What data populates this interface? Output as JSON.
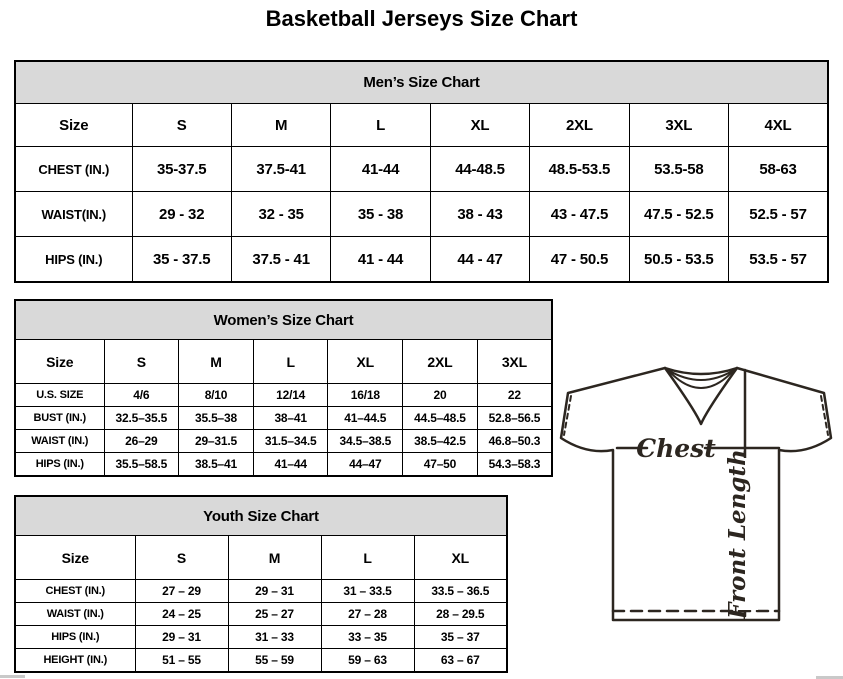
{
  "page": {
    "title": "Basketball Jerseys Size Chart"
  },
  "tables": {
    "mens": {
      "title": "Men’s Size Chart",
      "columns": [
        "Size",
        "S",
        "M",
        "L",
        "XL",
        "2XL",
        "3XL",
        "4XL"
      ],
      "rows": [
        {
          "label": "CHEST (IN.)",
          "values": [
            "35-37.5",
            "37.5-41",
            "41-44",
            "44-48.5",
            "48.5-53.5",
            "53.5-58",
            "58-63"
          ]
        },
        {
          "label": "WAIST(IN.)",
          "values": [
            "29 - 32",
            "32 - 35",
            "35 - 38",
            "38 - 43",
            "43 - 47.5",
            "47.5 - 52.5",
            "52.5 - 57"
          ]
        },
        {
          "label": "HIPS (IN.)",
          "values": [
            "35 - 37.5",
            "37.5 - 41",
            "41 - 44",
            "44 - 47",
            "47 - 50.5",
            "50.5 - 53.5",
            "53.5 - 57"
          ]
        }
      ]
    },
    "womens": {
      "title": "Women’s Size Chart",
      "columns": [
        "Size",
        "S",
        "M",
        "L",
        "XL",
        "2XL",
        "3XL"
      ],
      "rows": [
        {
          "label": "U.S. SIZE",
          "values": [
            "4/6",
            "8/10",
            "12/14",
            "16/18",
            "20",
            "22"
          ]
        },
        {
          "label": "BUST (IN.)",
          "values": [
            "32.5–35.5",
            "35.5–38",
            "38–41",
            "41–44.5",
            "44.5–48.5",
            "52.8–56.5"
          ]
        },
        {
          "label": "WAIST (IN.)",
          "values": [
            "26–29",
            "29–31.5",
            "31.5–34.5",
            "34.5–38.5",
            "38.5–42.5",
            "46.8–50.3"
          ]
        },
        {
          "label": "HIPS (IN.)",
          "values": [
            "35.5–58.5",
            "38.5–41",
            "41–44",
            "44–47",
            "47–50",
            "54.3–58.3"
          ]
        }
      ]
    },
    "youth": {
      "title": "Youth Size Chart",
      "columns": [
        "Size",
        "S",
        "M",
        "L",
        "XL"
      ],
      "rows": [
        {
          "label": "CHEST (IN.)",
          "values": [
            "27 – 29",
            "29 – 31",
            "31 – 33.5",
            "33.5 – 36.5"
          ]
        },
        {
          "label": "WAIST (IN.)",
          "values": [
            "24 – 25",
            "25 – 27",
            "27 – 28",
            "28 – 29.5"
          ]
        },
        {
          "label": "HIPS (IN.)",
          "values": [
            "29 – 31",
            "31 – 33",
            "33 – 35",
            "35 – 37"
          ]
        },
        {
          "label": "HEIGHT (IN.)",
          "values": [
            "51 – 55",
            "55 – 59",
            "59 – 63",
            "63 – 67"
          ]
        }
      ]
    }
  },
  "diagram": {
    "chest_label": "Chest",
    "front_length_label": "Front Length"
  },
  "colors": {
    "table_header_bg": "#d9d9d9",
    "table_border": "#000000",
    "jersey_outline": "#2c2620",
    "scrollbar_fragment": "#c9c9c9"
  }
}
